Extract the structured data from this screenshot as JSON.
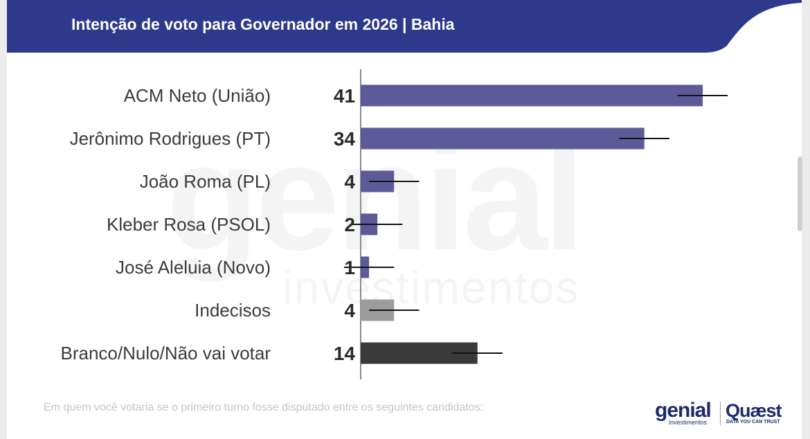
{
  "header": {
    "title": "Intenção de voto para Governador em 2026 | Bahia",
    "color": "#2d3a8c"
  },
  "watermark": {
    "main": "genial",
    "sub": "investimentos"
  },
  "chart_data": {
    "type": "bar",
    "orientation": "horizontal",
    "title": "Intenção de voto para Governador em 2026 | Bahia",
    "categories": [
      "ACM Neto (União)",
      "Jerônimo Rodrigues (PT)",
      "João Roma (PL)",
      "Kleber Rosa (PSOL)",
      "José Aleluia (Novo)",
      "Indecisos",
      "Branco/Nulo/Não vai votar"
    ],
    "values": [
      41,
      34,
      4,
      2,
      1,
      4,
      14
    ],
    "data_labels": [
      "41",
      "34",
      "4",
      "2",
      "1",
      "4",
      "14"
    ],
    "error_margin": 3,
    "colors": [
      "#5e5a9a",
      "#5e5a9a",
      "#5e5a9a",
      "#5e5a9a",
      "#5e5a9a",
      "#9c9c9c",
      "#3a3a3a"
    ],
    "xlim": [
      0,
      45
    ],
    "grid": false,
    "legend": "none"
  },
  "footer": {
    "question": "Em quem você votaria se o primeiro turno fosse disputado entre os seguintes candidatos:",
    "logos": {
      "genial": "genial",
      "genial_sub": "investimentos",
      "quaest": "Quæst",
      "quaest_sub": "DATA YOU CAN TRUST"
    }
  }
}
